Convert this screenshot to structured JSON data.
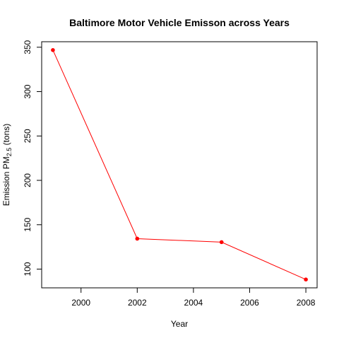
{
  "chart_data": {
    "type": "line",
    "title": "Baltimore Motor Vehicle Emisson across Years",
    "xlabel": "Year",
    "ylabel_prefix": "Emission  PM",
    "ylabel_subscript": "2.5",
    "ylabel_suffix": " (tons)",
    "x": [
      1999,
      2002,
      2005,
      2008
    ],
    "series": [
      {
        "values": [
          346.8,
          134.3,
          130.4,
          88.3
        ]
      }
    ],
    "xlim": [
      1998.6,
      2008.4
    ],
    "ylim": [
      78.9,
      356.2
    ],
    "xticks": [
      2000,
      2002,
      2004,
      2006,
      2008
    ],
    "yticks": [
      100,
      150,
      200,
      250,
      300,
      350
    ],
    "line_color": "#ff0000",
    "point_color": "#ff0000",
    "grid": false
  }
}
